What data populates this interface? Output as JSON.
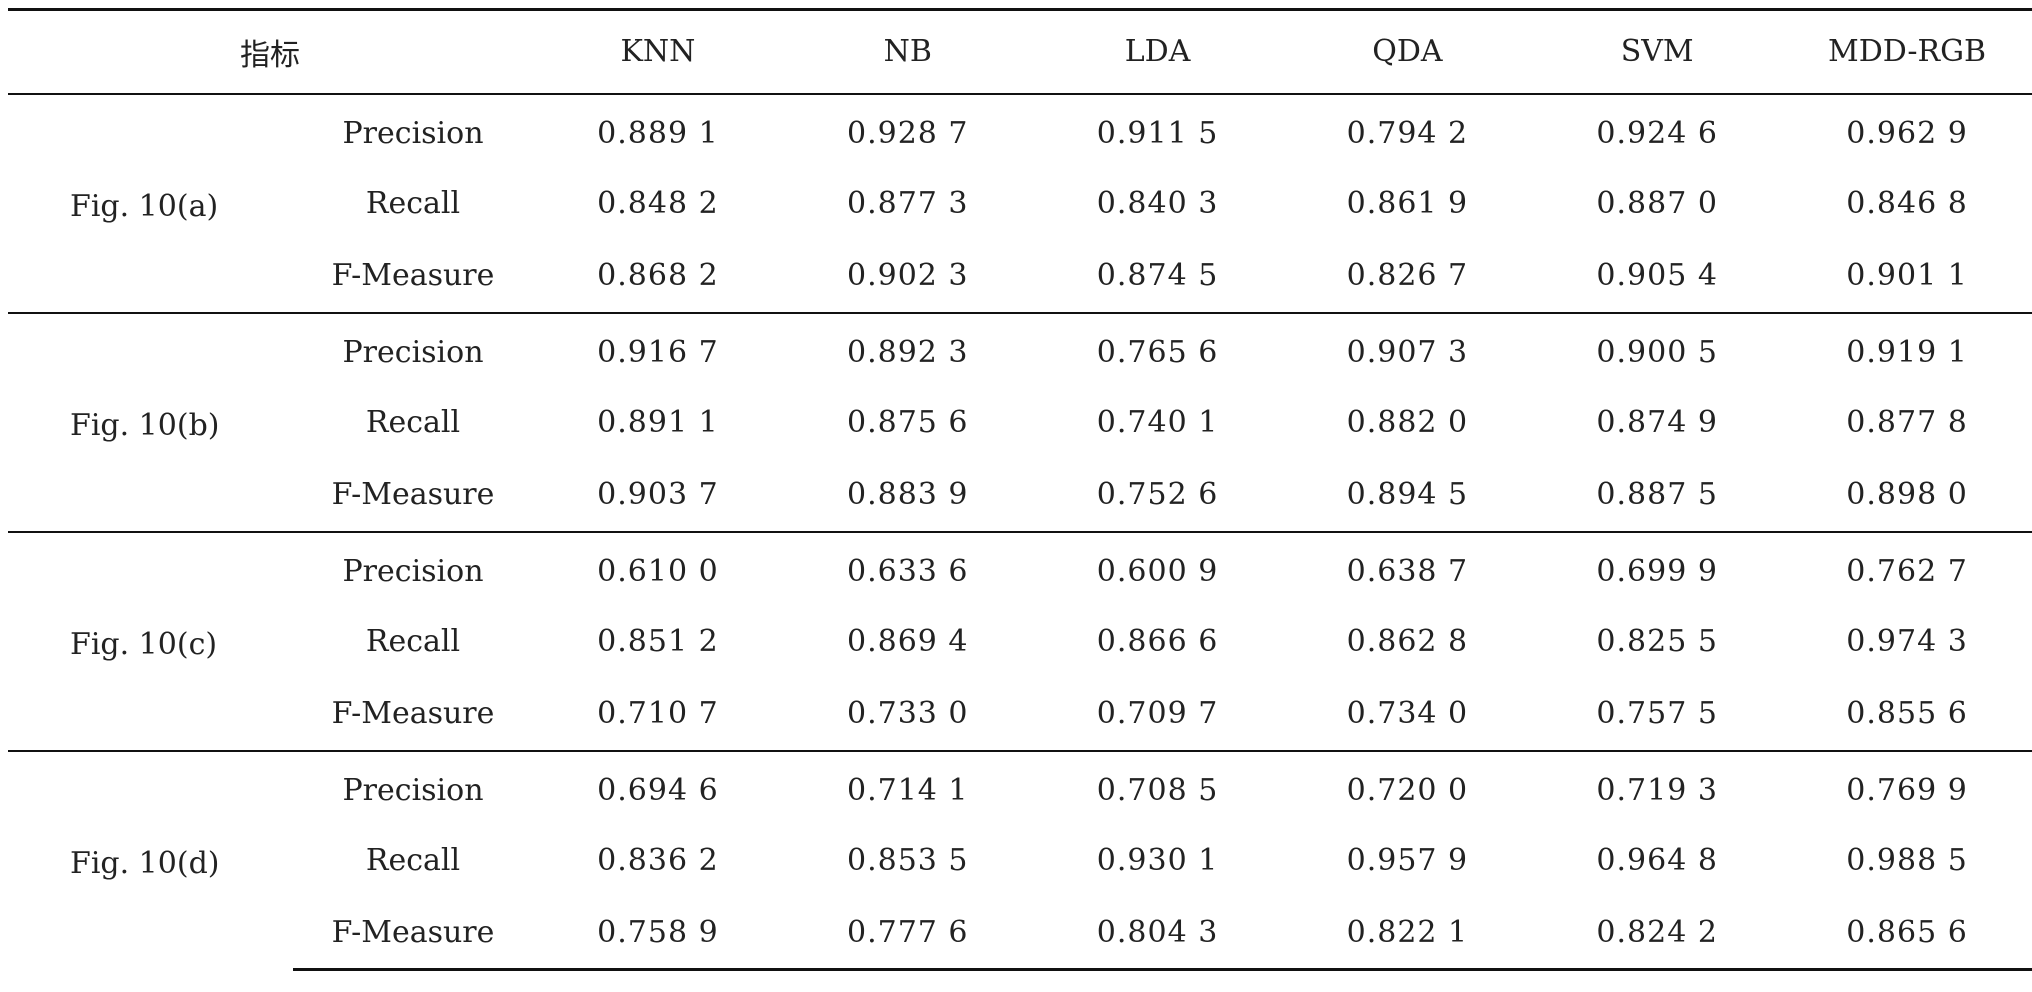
{
  "table": {
    "header": {
      "index_label": "指标",
      "methods": [
        "KNN",
        "NB",
        "LDA",
        "QDA",
        "SVM",
        "MDD-RGB"
      ]
    },
    "groups": [
      {
        "figure": "Fig. 10(a)",
        "rows": [
          {
            "metric": "Precision",
            "values": [
              "0.889 1",
              "0.928 7",
              "0.911 5",
              "0.794 2",
              "0.924 6",
              "0.962 9"
            ]
          },
          {
            "metric": "Recall",
            "values": [
              "0.848 2",
              "0.877 3",
              "0.840 3",
              "0.861 9",
              "0.887 0",
              "0.846 8"
            ]
          },
          {
            "metric": "F-Measure",
            "values": [
              "0.868 2",
              "0.902 3",
              "0.874 5",
              "0.826 7",
              "0.905 4",
              "0.901 1"
            ]
          }
        ]
      },
      {
        "figure": "Fig. 10(b)",
        "rows": [
          {
            "metric": "Precision",
            "values": [
              "0.916 7",
              "0.892 3",
              "0.765 6",
              "0.907 3",
              "0.900 5",
              "0.919 1"
            ]
          },
          {
            "metric": "Recall",
            "values": [
              "0.891 1",
              "0.875 6",
              "0.740 1",
              "0.882 0",
              "0.874 9",
              "0.877 8"
            ]
          },
          {
            "metric": "F-Measure",
            "values": [
              "0.903 7",
              "0.883 9",
              "0.752 6",
              "0.894 5",
              "0.887 5",
              "0.898 0"
            ]
          }
        ]
      },
      {
        "figure": "Fig. 10(c)",
        "rows": [
          {
            "metric": "Precision",
            "values": [
              "0.610 0",
              "0.633 6",
              "0.600 9",
              "0.638 7",
              "0.699 9",
              "0.762 7"
            ]
          },
          {
            "metric": "Recall",
            "values": [
              "0.851 2",
              "0.869 4",
              "0.866 6",
              "0.862 8",
              "0.825 5",
              "0.974 3"
            ]
          },
          {
            "metric": "F-Measure",
            "values": [
              "0.710 7",
              "0.733 0",
              "0.709 7",
              "0.734 0",
              "0.757 5",
              "0.855 6"
            ]
          }
        ]
      },
      {
        "figure": "Fig. 10(d)",
        "rows": [
          {
            "metric": "Precision",
            "values": [
              "0.694 6",
              "0.714 1",
              "0.708 5",
              "0.720 0",
              "0.719 3",
              "0.769 9"
            ]
          },
          {
            "metric": "Recall",
            "values": [
              "0.836 2",
              "0.853 5",
              "0.930 1",
              "0.957 9",
              "0.964 8",
              "0.988 5"
            ]
          },
          {
            "metric": "F-Measure",
            "values": [
              "0.758 9",
              "0.777 6",
              "0.804 3",
              "0.822 1",
              "0.824 2",
              "0.865 6"
            ]
          }
        ]
      }
    ]
  }
}
